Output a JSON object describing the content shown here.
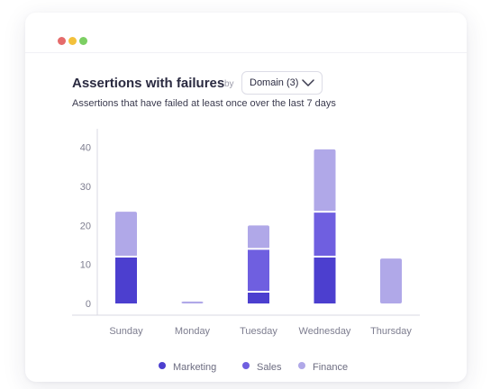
{
  "window": {
    "controls": [
      "close",
      "minimize",
      "maximize"
    ]
  },
  "header": {
    "title": "Assertions with failures",
    "by_label": "by",
    "dropdown": {
      "label": "Domain (3)",
      "icon": "chevron-down-icon"
    },
    "subtitle": "Assertions that have failed at least once over the last 7 days"
  },
  "colors": {
    "marketing": "#4c3fcf",
    "sales": "#6f5fe0",
    "finance": "#b0a8e8",
    "gridline": "#ececf2",
    "axis": "#d9d9e3"
  },
  "chart_data": {
    "type": "bar",
    "stacked": true,
    "title": "Assertions with failures",
    "categories": [
      "Sunday",
      "Monday",
      "Tuesday",
      "Wednesday",
      "Thursday"
    ],
    "series": [
      {
        "name": "Marketing",
        "values": [
          12,
          0,
          3,
          12,
          0
        ]
      },
      {
        "name": "Sales",
        "values": [
          0,
          0,
          11,
          11.5,
          0
        ]
      },
      {
        "name": "Finance",
        "values": [
          11.5,
          0.5,
          6,
          16,
          11.5
        ]
      }
    ],
    "yticks": [
      "0",
      "10",
      "20",
      "30",
      "40"
    ],
    "ylim": [
      -3,
      42
    ],
    "grid": false,
    "legend": "bottom"
  }
}
